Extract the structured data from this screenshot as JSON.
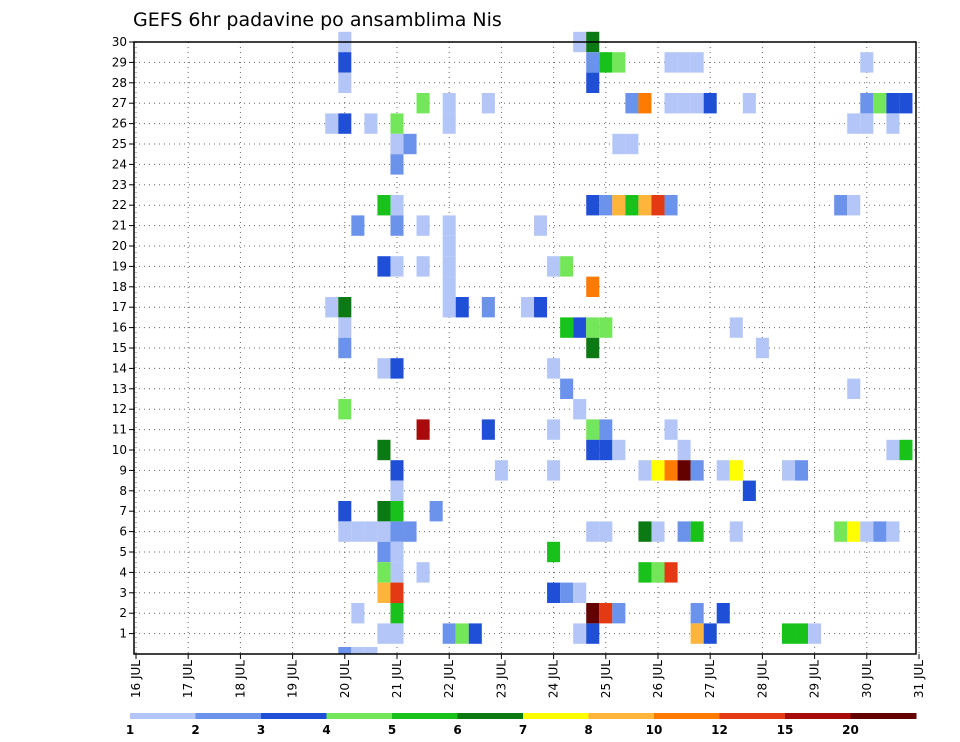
{
  "chart_data": {
    "type": "heatmap",
    "title": "GEFS 6hr padavine po ansamblima Nis",
    "x_tick_labels": [
      "16 JUL",
      "17 JUL",
      "18 JUL",
      "19 JUL",
      "20 JUL",
      "21 JUL",
      "22 JUL",
      "23 JUL",
      "24 JUL",
      "25 JUL",
      "26 JUL",
      "27 JUL",
      "28 JUL",
      "29 JUL",
      "30 JUL",
      "31 JUL"
    ],
    "y_tick_labels": [
      "1",
      "2",
      "3",
      "4",
      "5",
      "6",
      "7",
      "8",
      "9",
      "10",
      "11",
      "12",
      "13",
      "14",
      "15",
      "16",
      "17",
      "18",
      "19",
      "20",
      "21",
      "22",
      "23",
      "24",
      "25",
      "26",
      "27",
      "28",
      "29",
      "30"
    ],
    "time_steps_per_day": 4,
    "grid": true,
    "legend": {
      "placement": "bottom",
      "labels": [
        "1",
        "2",
        "3",
        "4",
        "5",
        "6",
        "7",
        "8",
        "10",
        "12",
        "15",
        "20"
      ],
      "colors": [
        "#b3c6f7",
        "#6b93ec",
        "#1f4fd6",
        "#74e65a",
        "#18c21a",
        "#0c7a12",
        "#ffff00",
        "#ffb43c",
        "#ff7a00",
        "#e33a14",
        "#a80b0b",
        "#630000"
      ]
    },
    "cells": [
      {
        "member": 30,
        "day": 20.0,
        "level": 1
      },
      {
        "member": 30,
        "day": 24.5,
        "level": 1
      },
      {
        "member": 30,
        "day": 24.75,
        "level": 6
      },
      {
        "member": 29,
        "day": 20.0,
        "level": 3
      },
      {
        "member": 29,
        "day": 24.75,
        "level": 2
      },
      {
        "member": 29,
        "day": 25.0,
        "level": 5
      },
      {
        "member": 29,
        "day": 25.25,
        "level": 4
      },
      {
        "member": 29,
        "day": 26.25,
        "level": 1
      },
      {
        "member": 29,
        "day": 26.5,
        "level": 1
      },
      {
        "member": 29,
        "day": 26.75,
        "level": 1
      },
      {
        "member": 29,
        "day": 30.0,
        "level": 1
      },
      {
        "member": 28,
        "day": 20.0,
        "level": 1
      },
      {
        "member": 28,
        "day": 24.75,
        "level": 3
      },
      {
        "member": 27,
        "day": 21.5,
        "level": 4
      },
      {
        "member": 27,
        "day": 22.0,
        "level": 1
      },
      {
        "member": 27,
        "day": 22.75,
        "level": 1
      },
      {
        "member": 27,
        "day": 25.5,
        "level": 2
      },
      {
        "member": 27,
        "day": 25.75,
        "level": 10
      },
      {
        "member": 27,
        "day": 26.25,
        "level": 1
      },
      {
        "member": 27,
        "day": 26.5,
        "level": 1
      },
      {
        "member": 27,
        "day": 26.75,
        "level": 1
      },
      {
        "member": 27,
        "day": 27.0,
        "level": 3
      },
      {
        "member": 27,
        "day": 27.75,
        "level": 1
      },
      {
        "member": 27,
        "day": 30.0,
        "level": 2
      },
      {
        "member": 27,
        "day": 30.25,
        "level": 4
      },
      {
        "member": 27,
        "day": 30.5,
        "level": 3
      },
      {
        "member": 27,
        "day": 30.75,
        "level": 3
      },
      {
        "member": 26,
        "day": 19.75,
        "level": 1
      },
      {
        "member": 26,
        "day": 20.0,
        "level": 3
      },
      {
        "member": 26,
        "day": 20.5,
        "level": 1
      },
      {
        "member": 26,
        "day": 21.0,
        "level": 4
      },
      {
        "member": 26,
        "day": 22.0,
        "level": 1
      },
      {
        "member": 26,
        "day": 29.75,
        "level": 1
      },
      {
        "member": 26,
        "day": 30.0,
        "level": 1
      },
      {
        "member": 26,
        "day": 30.5,
        "level": 1
      },
      {
        "member": 25,
        "day": 21.0,
        "level": 1
      },
      {
        "member": 25,
        "day": 21.25,
        "level": 2
      },
      {
        "member": 25,
        "day": 25.25,
        "level": 1
      },
      {
        "member": 25,
        "day": 25.5,
        "level": 1
      },
      {
        "member": 24,
        "day": 21.0,
        "level": 2
      },
      {
        "member": 22,
        "day": 20.75,
        "level": 5
      },
      {
        "member": 22,
        "day": 21.0,
        "level": 1
      },
      {
        "member": 22,
        "day": 24.75,
        "level": 3
      },
      {
        "member": 22,
        "day": 25.0,
        "level": 2
      },
      {
        "member": 22,
        "day": 25.25,
        "level": 8
      },
      {
        "member": 22,
        "day": 25.5,
        "level": 5
      },
      {
        "member": 22,
        "day": 25.75,
        "level": 8
      },
      {
        "member": 22,
        "day": 26.0,
        "level": 12
      },
      {
        "member": 22,
        "day": 26.25,
        "level": 2
      },
      {
        "member": 22,
        "day": 29.5,
        "level": 2
      },
      {
        "member": 22,
        "day": 29.75,
        "level": 1
      },
      {
        "member": 21,
        "day": 20.25,
        "level": 2
      },
      {
        "member": 21,
        "day": 21.0,
        "level": 2
      },
      {
        "member": 21,
        "day": 21.5,
        "level": 1
      },
      {
        "member": 21,
        "day": 22.0,
        "level": 1
      },
      {
        "member": 21,
        "day": 23.75,
        "level": 1
      },
      {
        "member": 20,
        "day": 22.0,
        "level": 1
      },
      {
        "member": 19,
        "day": 20.75,
        "level": 3
      },
      {
        "member": 19,
        "day": 21.0,
        "level": 1
      },
      {
        "member": 19,
        "day": 21.5,
        "level": 1
      },
      {
        "member": 19,
        "day": 22.0,
        "level": 1
      },
      {
        "member": 19,
        "day": 24.0,
        "level": 1
      },
      {
        "member": 19,
        "day": 24.25,
        "level": 4
      },
      {
        "member": 18,
        "day": 22.0,
        "level": 1
      },
      {
        "member": 18,
        "day": 24.75,
        "level": 10
      },
      {
        "member": 17,
        "day": 19.75,
        "level": 1
      },
      {
        "member": 17,
        "day": 20.0,
        "level": 6
      },
      {
        "member": 17,
        "day": 22.0,
        "level": 1
      },
      {
        "member": 17,
        "day": 22.25,
        "level": 3
      },
      {
        "member": 17,
        "day": 22.75,
        "level": 2
      },
      {
        "member": 17,
        "day": 23.5,
        "level": 1
      },
      {
        "member": 17,
        "day": 23.75,
        "level": 3
      },
      {
        "member": 16,
        "day": 20.0,
        "level": 1
      },
      {
        "member": 16,
        "day": 24.25,
        "level": 5
      },
      {
        "member": 16,
        "day": 24.5,
        "level": 3
      },
      {
        "member": 16,
        "day": 24.75,
        "level": 4
      },
      {
        "member": 16,
        "day": 25.0,
        "level": 4
      },
      {
        "member": 16,
        "day": 27.5,
        "level": 1
      },
      {
        "member": 15,
        "day": 20.0,
        "level": 2
      },
      {
        "member": 15,
        "day": 24.75,
        "level": 6
      },
      {
        "member": 15,
        "day": 28.0,
        "level": 1
      },
      {
        "member": 14,
        "day": 20.75,
        "level": 1
      },
      {
        "member": 14,
        "day": 21.0,
        "level": 3
      },
      {
        "member": 14,
        "day": 24.0,
        "level": 1
      },
      {
        "member": 13,
        "day": 24.25,
        "level": 2
      },
      {
        "member": 13,
        "day": 29.75,
        "level": 1
      },
      {
        "member": 12,
        "day": 20.0,
        "level": 4
      },
      {
        "member": 12,
        "day": 24.5,
        "level": 1
      },
      {
        "member": 11,
        "day": 21.5,
        "level": 15
      },
      {
        "member": 11,
        "day": 22.75,
        "level": 3
      },
      {
        "member": 11,
        "day": 24.0,
        "level": 1
      },
      {
        "member": 11,
        "day": 24.75,
        "level": 4
      },
      {
        "member": 11,
        "day": 25.0,
        "level": 2
      },
      {
        "member": 11,
        "day": 26.25,
        "level": 1
      },
      {
        "member": 10,
        "day": 20.75,
        "level": 6
      },
      {
        "member": 10,
        "day": 24.75,
        "level": 3
      },
      {
        "member": 10,
        "day": 25.0,
        "level": 3
      },
      {
        "member": 10,
        "day": 25.25,
        "level": 1
      },
      {
        "member": 10,
        "day": 26.5,
        "level": 1
      },
      {
        "member": 10,
        "day": 30.5,
        "level": 1
      },
      {
        "member": 10,
        "day": 30.75,
        "level": 5
      },
      {
        "member": 9,
        "day": 21.0,
        "level": 3
      },
      {
        "member": 9,
        "day": 23.0,
        "level": 1
      },
      {
        "member": 9,
        "day": 24.0,
        "level": 1
      },
      {
        "member": 9,
        "day": 25.75,
        "level": 1
      },
      {
        "member": 9,
        "day": 26.0,
        "level": 7
      },
      {
        "member": 9,
        "day": 26.25,
        "level": 10
      },
      {
        "member": 9,
        "day": 26.5,
        "level": 20
      },
      {
        "member": 9,
        "day": 26.75,
        "level": 2
      },
      {
        "member": 9,
        "day": 27.25,
        "level": 1
      },
      {
        "member": 9,
        "day": 27.5,
        "level": 7
      },
      {
        "member": 9,
        "day": 28.5,
        "level": 1
      },
      {
        "member": 9,
        "day": 28.75,
        "level": 2
      },
      {
        "member": 8,
        "day": 21.0,
        "level": 1
      },
      {
        "member": 8,
        "day": 27.75,
        "level": 3
      },
      {
        "member": 7,
        "day": 20.0,
        "level": 3
      },
      {
        "member": 7,
        "day": 20.75,
        "level": 6
      },
      {
        "member": 7,
        "day": 21.0,
        "level": 5
      },
      {
        "member": 7,
        "day": 21.75,
        "level": 2
      },
      {
        "member": 6,
        "day": 20.0,
        "level": 1
      },
      {
        "member": 6,
        "day": 20.25,
        "level": 1
      },
      {
        "member": 6,
        "day": 20.5,
        "level": 1
      },
      {
        "member": 6,
        "day": 20.75,
        "level": 1
      },
      {
        "member": 6,
        "day": 21.0,
        "level": 2
      },
      {
        "member": 6,
        "day": 21.25,
        "level": 2
      },
      {
        "member": 6,
        "day": 24.75,
        "level": 1
      },
      {
        "member": 6,
        "day": 25.0,
        "level": 1
      },
      {
        "member": 6,
        "day": 25.75,
        "level": 6
      },
      {
        "member": 6,
        "day": 26.0,
        "level": 1
      },
      {
        "member": 6,
        "day": 26.5,
        "level": 2
      },
      {
        "member": 6,
        "day": 26.75,
        "level": 5
      },
      {
        "member": 6,
        "day": 27.5,
        "level": 1
      },
      {
        "member": 6,
        "day": 29.5,
        "level": 4
      },
      {
        "member": 6,
        "day": 29.75,
        "level": 7
      },
      {
        "member": 6,
        "day": 30.0,
        "level": 1
      },
      {
        "member": 6,
        "day": 30.25,
        "level": 2
      },
      {
        "member": 6,
        "day": 30.5,
        "level": 1
      },
      {
        "member": 5,
        "day": 20.75,
        "level": 2
      },
      {
        "member": 5,
        "day": 21.0,
        "level": 1
      },
      {
        "member": 5,
        "day": 24.0,
        "level": 5
      },
      {
        "member": 4,
        "day": 20.75,
        "level": 4
      },
      {
        "member": 4,
        "day": 21.0,
        "level": 1
      },
      {
        "member": 4,
        "day": 21.5,
        "level": 1
      },
      {
        "member": 4,
        "day": 25.75,
        "level": 5
      },
      {
        "member": 4,
        "day": 26.0,
        "level": 4
      },
      {
        "member": 4,
        "day": 26.25,
        "level": 12
      },
      {
        "member": 3,
        "day": 20.75,
        "level": 8
      },
      {
        "member": 3,
        "day": 21.0,
        "level": 12
      },
      {
        "member": 3,
        "day": 24.0,
        "level": 3
      },
      {
        "member": 3,
        "day": 24.25,
        "level": 2
      },
      {
        "member": 3,
        "day": 24.5,
        "level": 1
      },
      {
        "member": 2,
        "day": 20.25,
        "level": 1
      },
      {
        "member": 2,
        "day": 21.0,
        "level": 5
      },
      {
        "member": 2,
        "day": 24.75,
        "level": 20
      },
      {
        "member": 2,
        "day": 25.0,
        "level": 12
      },
      {
        "member": 2,
        "day": 25.25,
        "level": 2
      },
      {
        "member": 2,
        "day": 26.75,
        "level": 2
      },
      {
        "member": 2,
        "day": 27.25,
        "level": 3
      },
      {
        "member": 1,
        "day": 20.75,
        "level": 1
      },
      {
        "member": 1,
        "day": 21.0,
        "level": 1
      },
      {
        "member": 1,
        "day": 22.0,
        "level": 2
      },
      {
        "member": 1,
        "day": 22.25,
        "level": 4
      },
      {
        "member": 1,
        "day": 22.5,
        "level": 3
      },
      {
        "member": 1,
        "day": 24.5,
        "level": 1
      },
      {
        "member": 1,
        "day": 24.75,
        "level": 3
      },
      {
        "member": 1,
        "day": 26.75,
        "level": 8
      },
      {
        "member": 1,
        "day": 27.0,
        "level": 3
      },
      {
        "member": 1,
        "day": 28.5,
        "level": 5
      },
      {
        "member": 1,
        "day": 28.75,
        "level": 5
      },
      {
        "member": 1,
        "day": 29.0,
        "level": 1
      },
      {
        "member": 0,
        "day": 20.0,
        "level": 2
      },
      {
        "member": 0,
        "day": 20.25,
        "level": 1
      },
      {
        "member": 0,
        "day": 20.5,
        "level": 1
      }
    ]
  }
}
